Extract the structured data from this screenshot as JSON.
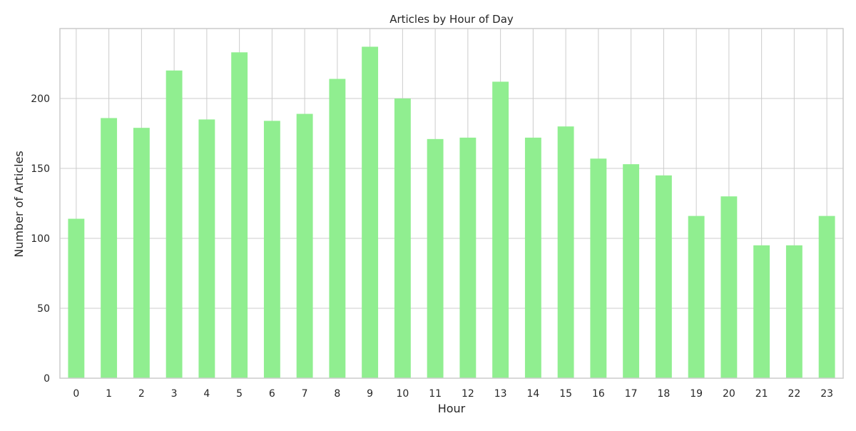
{
  "chart_data": {
    "type": "bar",
    "title": "Articles by Hour of Day",
    "xlabel": "Hour",
    "ylabel": "Number of Articles",
    "categories": [
      "0",
      "1",
      "2",
      "3",
      "4",
      "5",
      "6",
      "7",
      "8",
      "9",
      "10",
      "11",
      "12",
      "13",
      "14",
      "15",
      "16",
      "17",
      "18",
      "19",
      "20",
      "21",
      "22",
      "23"
    ],
    "values": [
      114,
      186,
      179,
      220,
      185,
      233,
      184,
      189,
      214,
      237,
      200,
      171,
      172,
      212,
      172,
      180,
      157,
      153,
      145,
      116,
      130,
      95,
      95,
      116
    ],
    "ylim": [
      0,
      250
    ],
    "yticks": [
      0,
      50,
      100,
      150,
      200
    ],
    "grid": true,
    "bar_color": "#90ee90",
    "grid_color": "#cccccc",
    "legend": "none"
  }
}
